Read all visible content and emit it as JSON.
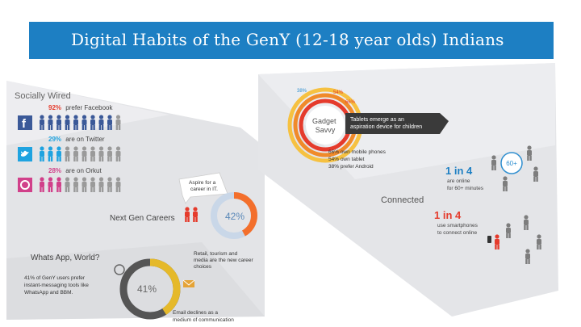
{
  "header": {
    "title": "Digital Habits of the GenY (12-18 year olds) Indians"
  },
  "colors": {
    "blue": "#1d7fc3",
    "red": "#e53b2c",
    "orange": "#f0a030",
    "gray": "#7d7d7d",
    "facebook": "#3b5998",
    "twitter": "#1fa3e0",
    "orkut": "#d1408a"
  },
  "left_panel": {
    "socially_wired": {
      "title": "Socially Wired",
      "facebook": {
        "pct": "92%",
        "text": "prefer Facebook",
        "icon": "facebook-icon"
      },
      "twitter": {
        "pct": "29%",
        "text": "are on Twitter",
        "icon": "twitter-icon"
      },
      "orkut": {
        "pct": "28%",
        "text": "are on Orkut",
        "icon": "orkut-icon"
      }
    },
    "careers": {
      "title": "Next Gen Careers",
      "aspire": [
        "Aspire for a",
        "career in IT."
      ],
      "pct": "42%",
      "value": 42,
      "note": [
        "Retail, tourism and",
        "media are the new career",
        "choices"
      ]
    },
    "whatsapp": {
      "title": "Whats App, World?",
      "lines": [
        "41% of GenY users prefer",
        "instant-messaging tools like",
        "WhatsApp and BBM."
      ],
      "pct": "41%",
      "value": 41,
      "email": [
        "Email declines as a",
        "medium of communication"
      ]
    }
  },
  "right_panel": {
    "gadget": {
      "title": [
        "Gadget",
        "Savvy"
      ],
      "ring_labels": [
        "38%",
        "54%",
        "66%"
      ],
      "values": [
        38,
        54,
        66
      ],
      "tagline": [
        "Tablets emerge as an",
        "aspiration device for children"
      ],
      "stats": [
        "66% own mobile phones",
        "54% own tablet",
        "38% prefer Android"
      ]
    },
    "connected": {
      "title": "Connected",
      "stat1": {
        "ratio": "1 in 4",
        "lines": [
          "are online",
          "for 60+ minutes"
        ],
        "badge": "60+"
      },
      "stat2": {
        "ratio": "1 in 4",
        "lines": [
          "use smartphones",
          "to connect online"
        ]
      }
    }
  }
}
